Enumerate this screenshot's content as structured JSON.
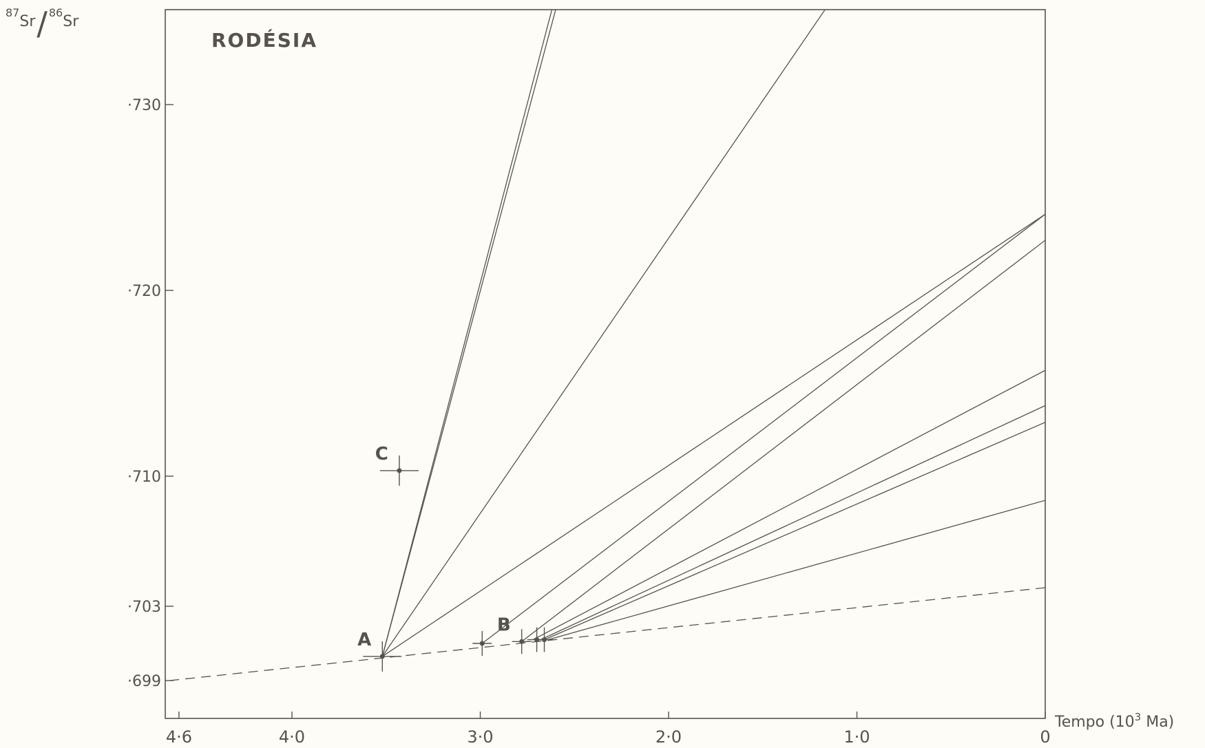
{
  "chart_data": {
    "type": "line",
    "title": "RODÉSIA",
    "ylabel": {
      "num_mass": "87",
      "num_el": "Sr",
      "den_mass": "86",
      "den_el": "Sr"
    },
    "xlabel": {
      "prefix": "Tempo (10",
      "exp": "3",
      "suffix": " Ma)"
    },
    "xlim": [
      4.65,
      0
    ],
    "ylim": [
      0.697,
      0.7351
    ],
    "x_ticks": [
      {
        "v": 4.6,
        "label": "4·6"
      },
      {
        "v": 4.0,
        "label": "4·0"
      },
      {
        "v": 3.0,
        "label": "3·0"
      },
      {
        "v": 2.0,
        "label": "2·0"
      },
      {
        "v": 1.0,
        "label": "1·0"
      },
      {
        "v": 0.0,
        "label": "0"
      }
    ],
    "y_ticks": [
      {
        "v": 0.699,
        "label": "·699"
      },
      {
        "v": 0.703,
        "label": "·703"
      },
      {
        "v": 0.71,
        "label": "·710"
      },
      {
        "v": 0.72,
        "label": "·720"
      },
      {
        "v": 0.73,
        "label": "·730"
      }
    ],
    "reference_line": {
      "name": "",
      "style": "dashed",
      "x": [
        4.65,
        0
      ],
      "y": [
        0.699,
        0.704
      ]
    },
    "points": [
      {
        "label": "A",
        "x": 3.52,
        "y": 0.7003
      },
      {
        "label": "C",
        "x": 3.43,
        "y": 0.7103
      },
      {
        "label": "B",
        "x": 2.78,
        "y": 0.7011
      },
      {
        "label": "",
        "x": 2.99,
        "y": 0.701
      },
      {
        "label": "",
        "x": 2.7,
        "y": 0.7012
      },
      {
        "label": "",
        "x": 2.66,
        "y": 0.7012
      }
    ],
    "series": [
      {
        "x": [
          3.52,
          2.62
        ],
        "y": [
          0.7003,
          0.7351
        ]
      },
      {
        "x": [
          3.52,
          2.6
        ],
        "y": [
          0.7003,
          0.7351
        ]
      },
      {
        "x": [
          3.52,
          1.17
        ],
        "y": [
          0.7003,
          0.7351
        ]
      },
      {
        "x": [
          3.52,
          0.0
        ],
        "y": [
          0.7003,
          0.7241
        ]
      },
      {
        "x": [
          2.99,
          0.0
        ],
        "y": [
          0.701,
          0.7241
        ]
      },
      {
        "x": [
          2.78,
          0.0
        ],
        "y": [
          0.7011,
          0.7227
        ]
      },
      {
        "x": [
          2.72,
          0.0
        ],
        "y": [
          0.7012,
          0.7157
        ]
      },
      {
        "x": [
          2.68,
          0.0
        ],
        "y": [
          0.7012,
          0.7138
        ]
      },
      {
        "x": [
          2.66,
          0.0
        ],
        "y": [
          0.7012,
          0.7129
        ]
      },
      {
        "x": [
          2.64,
          0.0
        ],
        "y": [
          0.7012,
          0.7087
        ]
      }
    ]
  }
}
